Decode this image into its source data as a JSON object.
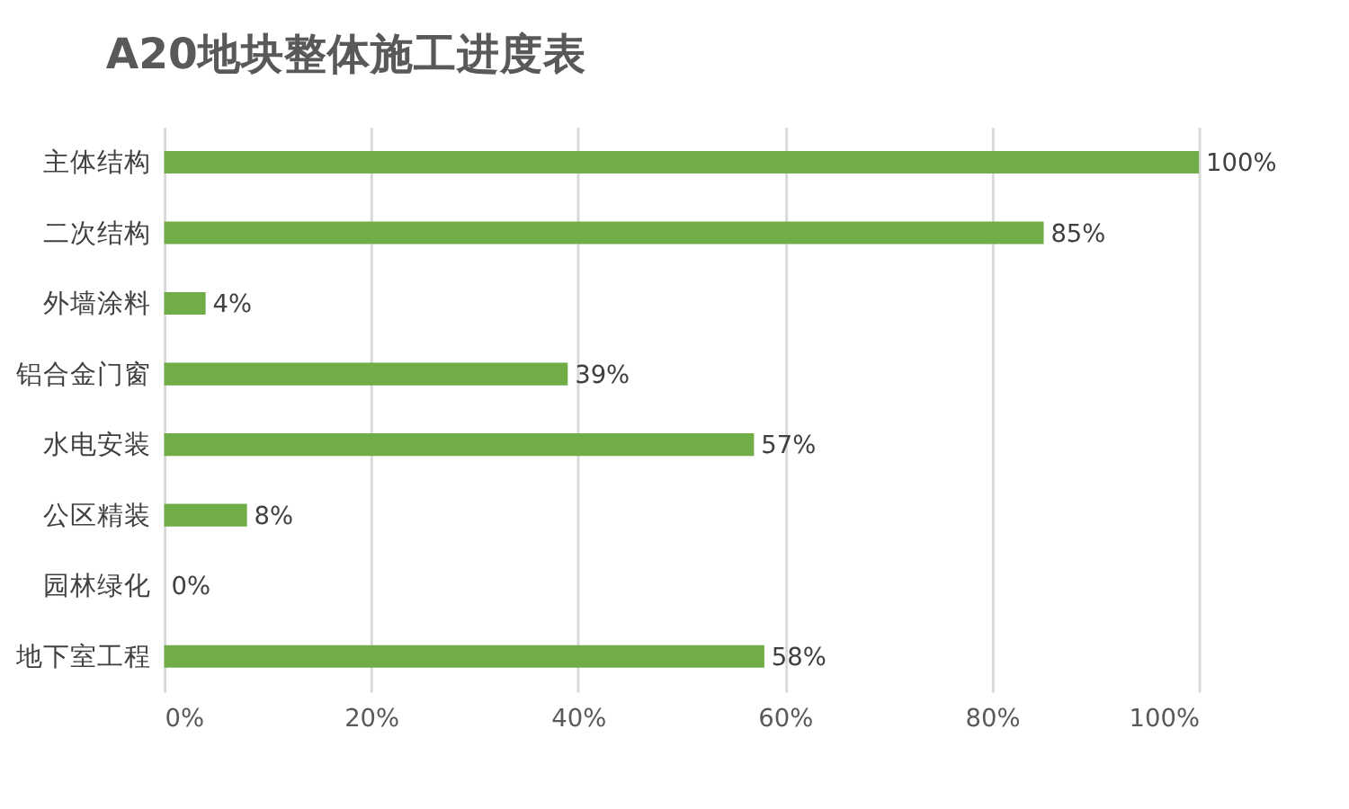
{
  "chart_data": {
    "type": "bar",
    "orientation": "horizontal",
    "title": "A20地块整体施工进度表",
    "categories": [
      "主体结构",
      "二次结构",
      "外墙涂料",
      "铝合金门窗",
      "水电安装",
      "公区精装",
      "园林绿化",
      "地下室工程"
    ],
    "values": [
      100,
      85,
      4,
      39,
      57,
      8,
      0,
      58
    ],
    "value_labels": [
      "100%",
      "85%",
      "4%",
      "39%",
      "57%",
      "8%",
      "0%",
      "58%"
    ],
    "color": "#70ad47",
    "xlim": [
      0,
      100
    ],
    "xticks": [
      {
        "value": 0,
        "label": "0%"
      },
      {
        "value": 20,
        "label": "20%"
      },
      {
        "value": 40,
        "label": "40%"
      },
      {
        "value": 60,
        "label": "60%"
      },
      {
        "value": 80,
        "label": "80%"
      },
      {
        "value": 100,
        "label": "100%"
      }
    ],
    "grid": "x"
  }
}
